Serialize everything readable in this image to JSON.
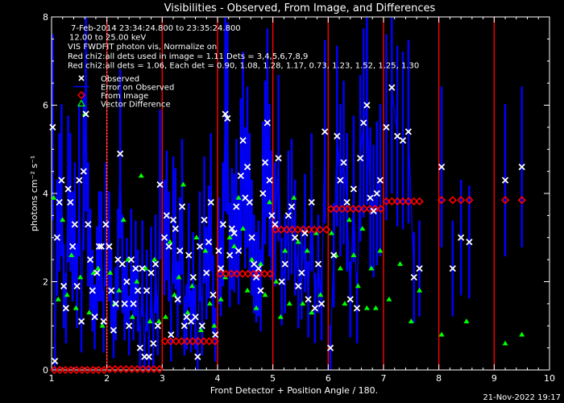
{
  "chart_data": {
    "type": "scatter",
    "title": "Visibilities - Observed, From Image, and Differences",
    "xlabel": "Front Detector + Position Angle / 180.",
    "ylabel": "photons cm⁻² s⁻¹",
    "xlim": [
      1,
      10
    ],
    "ylim": [
      0,
      8
    ],
    "x_ticks": [
      1,
      2,
      3,
      4,
      5,
      6,
      7,
      8,
      9,
      10
    ],
    "y_ticks": [
      0,
      2,
      4,
      6,
      8
    ],
    "grid": false,
    "info_lines": [
      "7-Feb-2014 23:34:24.800 to 23:35:24.800",
      "12.00 to 25.00 keV",
      "VIS FWDFIT photon vis,    Normalize on",
      "Red chi2:all dets used in image = 1.11   Dets = 3,4,5,6,7,8,9",
      "Red chi2:all dets = 1.06,  Each det = 0.90, 1.08, 1.28, 1.17, 0.73, 1.23, 1.52, 1.25, 1.30"
    ],
    "legend": [
      {
        "label": "Observed",
        "symbol": "x",
        "color": "#ffffff"
      },
      {
        "label": "Error on Observed",
        "symbol": "line",
        "color": "#0000ff"
      },
      {
        "label": "From Image",
        "symbol": "diamond",
        "color": "#ff0000"
      },
      {
        "label": "Vector Difference",
        "symbol": "triangle",
        "color": "#00ff00"
      }
    ],
    "legend_position": "top-left",
    "detector_boundaries": [
      2,
      3,
      4,
      5,
      6,
      7,
      8,
      9
    ],
    "dotted_boundaries": [
      2
    ],
    "series": [
      {
        "name": "Observed",
        "x": [
          1.02,
          1.06,
          1.1,
          1.14,
          1.18,
          1.22,
          1.26,
          1.3,
          1.34,
          1.38,
          1.42,
          1.46,
          1.5,
          1.54,
          1.58,
          1.62,
          1.66,
          1.7,
          1.74,
          1.78,
          1.82,
          1.86,
          1.9,
          1.94,
          1.98,
          2.04,
          2.08,
          2.12,
          2.16,
          2.2,
          2.24,
          2.28,
          2.32,
          2.36,
          2.4,
          2.44,
          2.48,
          2.52,
          2.56,
          2.6,
          2.64,
          2.68,
          2.72,
          2.76,
          2.8,
          2.84,
          2.88,
          2.92,
          2.96,
          3.04,
          3.08,
          3.12,
          3.16,
          3.2,
          3.24,
          3.28,
          3.32,
          3.36,
          3.4,
          3.44,
          3.48,
          3.52,
          3.56,
          3.6,
          3.64,
          3.68,
          3.72,
          3.76,
          3.8,
          3.84,
          3.88,
          3.92,
          3.96,
          4.02,
          4.06,
          4.1,
          4.14,
          4.18,
          4.22,
          4.26,
          4.3,
          4.34,
          4.38,
          4.42,
          4.46,
          4.5,
          4.54,
          4.58,
          4.62,
          4.66,
          4.7,
          4.74,
          4.78,
          4.82,
          4.86,
          4.9,
          4.94,
          4.98,
          5.04,
          5.1,
          5.16,
          5.22,
          5.28,
          5.34,
          5.4,
          5.46,
          5.52,
          5.58,
          5.64,
          5.7,
          5.76,
          5.82,
          5.88,
          5.94,
          6.04,
          6.1,
          6.16,
          6.22,
          6.28,
          6.34,
          6.4,
          6.46,
          6.52,
          6.58,
          6.64,
          6.7,
          6.76,
          6.82,
          6.88,
          6.94,
          7.05,
          7.15,
          7.25,
          7.35,
          7.45,
          7.55,
          7.65,
          8.05,
          8.25,
          8.4,
          8.55,
          9.2,
          9.5
        ],
        "y": [
          5.5,
          0.2,
          3.0,
          3.8,
          4.3,
          1.9,
          1.4,
          4.1,
          3.8,
          2.8,
          3.3,
          1.9,
          4.3,
          1.1,
          4.5,
          5.8,
          3.3,
          2.5,
          1.8,
          1.2,
          2.2,
          2.8,
          2.8,
          1.1,
          3.3,
          2.8,
          1.8,
          0.9,
          1.5,
          2.5,
          4.9,
          2.4,
          1.5,
          2.0,
          1.0,
          2.5,
          1.5,
          2.3,
          1.8,
          0.5,
          2.3,
          0.3,
          1.8,
          0.3,
          2.2,
          0.6,
          2.4,
          1.0,
          4.2,
          3.0,
          3.5,
          2.8,
          0.8,
          3.4,
          3.2,
          1.6,
          2.7,
          3.7,
          1.0,
          1.2,
          2.6,
          1.1,
          2.1,
          1.2,
          0.3,
          2.8,
          1.0,
          3.4,
          2.2,
          2.9,
          3.8,
          1.7,
          0.8,
          2.7,
          2.3,
          3.3,
          5.8,
          5.7,
          2.6,
          3.2,
          3.1,
          3.7,
          2.7,
          4.4,
          5.2,
          3.9,
          4.6,
          3.8,
          3.0,
          2.4,
          2.1,
          2.3,
          1.8,
          4.0,
          4.7,
          5.6,
          4.3,
          3.5,
          3.3,
          4.8,
          2.0,
          2.4,
          3.5,
          3.7,
          3.0,
          1.9,
          2.2,
          3.1,
          1.6,
          3.8,
          1.4,
          2.4,
          1.5,
          5.4,
          0.5,
          2.6,
          5.3,
          4.3,
          4.7,
          3.8,
          1.6,
          4.1,
          1.4,
          4.8,
          5.6,
          6.0,
          3.9,
          3.6,
          4.0,
          4.3,
          5.5,
          6.4,
          5.3,
          5.2,
          5.4,
          2.1,
          2.3,
          4.6,
          2.3,
          3.0,
          2.9,
          4.3,
          4.6
        ],
        "color": "#ffffff"
      },
      {
        "name": "From Image",
        "x": [
          1.05,
          1.15,
          1.25,
          1.35,
          1.45,
          1.55,
          1.65,
          1.75,
          1.85,
          1.95,
          2.05,
          2.15,
          2.25,
          2.35,
          2.45,
          2.55,
          2.65,
          2.75,
          2.85,
          2.95,
          3.05,
          3.15,
          3.25,
          3.35,
          3.45,
          3.55,
          3.65,
          3.75,
          3.85,
          3.95,
          4.05,
          4.15,
          4.25,
          4.35,
          4.45,
          4.55,
          4.65,
          4.75,
          4.85,
          4.95,
          5.05,
          5.15,
          5.25,
          5.35,
          5.45,
          5.55,
          5.65,
          5.75,
          5.85,
          5.97,
          6.05,
          6.15,
          6.25,
          6.35,
          6.45,
          6.55,
          6.65,
          6.75,
          6.85,
          6.95,
          7.05,
          7.15,
          7.25,
          7.35,
          7.45,
          7.55,
          7.65,
          8.05,
          8.25,
          8.4,
          8.55,
          9.2,
          9.5
        ],
        "y": [
          0.0,
          0.0,
          0.0,
          0.0,
          0.0,
          0.0,
          0.0,
          0.0,
          0.0,
          0.0,
          0.02,
          0.02,
          0.02,
          0.02,
          0.02,
          0.02,
          0.02,
          0.02,
          0.02,
          0.02,
          0.65,
          0.65,
          0.65,
          0.65,
          0.65,
          0.65,
          0.65,
          0.65,
          0.65,
          0.65,
          2.18,
          2.18,
          2.18,
          2.18,
          2.18,
          2.18,
          2.18,
          2.18,
          2.18,
          2.18,
          3.18,
          3.18,
          3.18,
          3.18,
          3.18,
          3.18,
          3.18,
          3.18,
          3.18,
          3.18,
          3.65,
          3.65,
          3.65,
          3.65,
          3.65,
          3.65,
          3.65,
          3.65,
          3.65,
          3.65,
          3.82,
          3.82,
          3.82,
          3.82,
          3.82,
          3.82,
          3.82,
          3.85,
          3.85,
          3.85,
          3.85,
          3.85,
          3.85
        ],
        "color": "#ff0000"
      },
      {
        "name": "Vector Difference",
        "x": [
          1.04,
          1.12,
          1.2,
          1.28,
          1.36,
          1.44,
          1.52,
          1.6,
          1.68,
          1.76,
          1.84,
          1.92,
          2.06,
          2.14,
          2.22,
          2.3,
          2.38,
          2.46,
          2.54,
          2.62,
          2.7,
          2.78,
          2.86,
          2.94,
          3.06,
          3.14,
          3.22,
          3.3,
          3.38,
          3.46,
          3.54,
          3.62,
          3.7,
          3.78,
          3.86,
          3.94,
          4.06,
          4.14,
          4.22,
          4.3,
          4.38,
          4.46,
          4.54,
          4.62,
          4.7,
          4.78,
          4.86,
          4.94,
          5.06,
          5.14,
          5.22,
          5.3,
          5.38,
          5.46,
          5.54,
          5.62,
          5.7,
          5.78,
          5.86,
          6.06,
          6.14,
          6.22,
          6.3,
          6.38,
          6.46,
          6.54,
          6.62,
          6.7,
          6.78,
          6.86,
          6.94,
          7.1,
          7.3,
          7.5,
          7.65,
          8.05,
          8.5,
          9.2,
          9.5
        ],
        "y": [
          3.9,
          1.6,
          3.4,
          1.7,
          2.6,
          1.4,
          2.1,
          5.8,
          1.3,
          2.2,
          2.3,
          1.0,
          2.2,
          1.5,
          1.8,
          3.4,
          2.5,
          1.2,
          2.0,
          4.4,
          2.3,
          1.1,
          2.5,
          1.1,
          1.2,
          2.9,
          1.7,
          2.1,
          4.2,
          1.3,
          1.9,
          3.0,
          0.9,
          2.7,
          1.5,
          1.0,
          1.6,
          2.1,
          3.0,
          2.8,
          3.9,
          3.2,
          1.8,
          2.5,
          1.4,
          2.4,
          1.7,
          3.8,
          2.0,
          1.2,
          2.7,
          1.5,
          3.9,
          2.9,
          1.5,
          2.7,
          1.3,
          3.1,
          1.7,
          3.1,
          2.6,
          2.3,
          1.5,
          3.4,
          2.6,
          1.9,
          3.2,
          1.4,
          2.3,
          1.4,
          2.7,
          1.6,
          2.4,
          1.1,
          1.8,
          0.8,
          1.1,
          0.6,
          0.8
        ],
        "color": "#00ff00"
      }
    ]
  },
  "footer": {
    "date": "21-Nov-2022 19:17"
  }
}
